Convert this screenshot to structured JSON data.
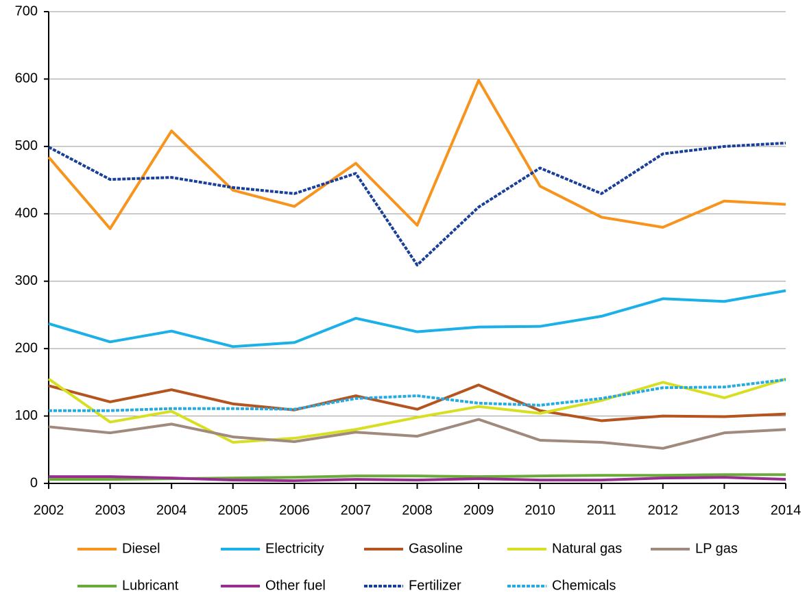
{
  "chart_data": {
    "type": "line",
    "categories": [
      "2002",
      "2003",
      "2004",
      "2005",
      "2006",
      "2007",
      "2008",
      "2009",
      "2010",
      "2011",
      "2012",
      "2013",
      "2014"
    ],
    "ylim": [
      0,
      700
    ],
    "yticks": [
      0,
      100,
      200,
      300,
      400,
      500,
      600,
      700
    ],
    "grid": true,
    "legend": "bottom",
    "series": [
      {
        "name": "Diesel",
        "color": "#f7941d",
        "dashed": false,
        "values": [
          484,
          378,
          523,
          435,
          411,
          475,
          383,
          598,
          441,
          395,
          380,
          419,
          414
        ]
      },
      {
        "name": "Electricity",
        "color": "#1cb0e8",
        "dashed": false,
        "values": [
          237,
          210,
          226,
          203,
          209,
          245,
          225,
          232,
          233,
          248,
          274,
          270,
          286
        ]
      },
      {
        "name": "Gasoline",
        "color": "#b5541e",
        "dashed": false,
        "values": [
          145,
          121,
          139,
          118,
          109,
          130,
          110,
          146,
          108,
          93,
          100,
          99,
          103
        ]
      },
      {
        "name": "Natural gas",
        "color": "#d7df23",
        "dashed": false,
        "values": [
          155,
          91,
          107,
          61,
          67,
          80,
          98,
          114,
          104,
          123,
          150,
          127,
          155
        ]
      },
      {
        "name": "LP gas",
        "color": "#a08a7e",
        "dashed": false,
        "values": [
          84,
          75,
          88,
          69,
          62,
          76,
          70,
          95,
          64,
          61,
          52,
          75,
          80
        ]
      },
      {
        "name": "Lubricant",
        "color": "#6aaa3a",
        "dashed": false,
        "values": [
          6,
          6,
          7,
          8,
          9,
          11,
          11,
          10,
          11,
          12,
          12,
          13,
          13
        ]
      },
      {
        "name": "Other fuel",
        "color": "#962e8e",
        "dashed": false,
        "values": [
          10,
          10,
          8,
          5,
          4,
          6,
          5,
          7,
          5,
          5,
          8,
          9,
          6
        ]
      },
      {
        "name": "Fertilizer",
        "color": "#1a3f9a",
        "dashed": true,
        "values": [
          499,
          451,
          454,
          439,
          430,
          460,
          324,
          410,
          468,
          430,
          489,
          500,
          505
        ]
      },
      {
        "name": "Chemicals",
        "color": "#27aae1",
        "dashed": true,
        "values": [
          108,
          108,
          111,
          111,
          110,
          126,
          130,
          119,
          116,
          126,
          142,
          143,
          154
        ]
      }
    ]
  }
}
